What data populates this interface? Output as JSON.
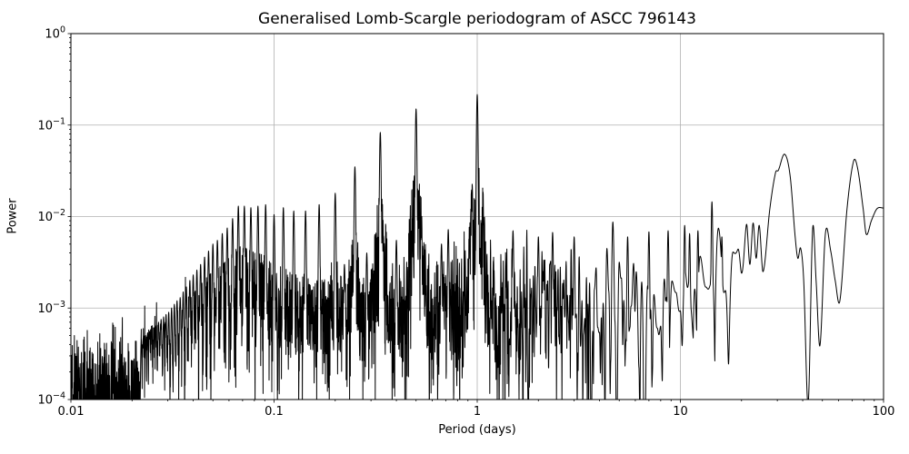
{
  "chart_data": {
    "type": "line",
    "title": "Generalised Lomb-Scargle periodogram of ASCC 796143",
    "xlabel": "Period (days)",
    "ylabel": "Power",
    "x_scale": "log",
    "y_scale": "log",
    "xlim": [
      0.01,
      100
    ],
    "ylim": [
      0.0001,
      1
    ],
    "grid": true,
    "grid_color": "#b0b0b0",
    "line_color": "#000000",
    "line_width": 1,
    "background": "#ffffff",
    "x_ticks": [
      {
        "value": 0.01,
        "label": "0.01"
      },
      {
        "value": 0.1,
        "label": "0.1"
      },
      {
        "value": 1,
        "label": "1"
      },
      {
        "value": 10,
        "label": "10"
      },
      {
        "value": 100,
        "label": "100"
      }
    ],
    "y_ticks": [
      {
        "value": 1,
        "base": "10",
        "exp": "0"
      },
      {
        "value": 0.1,
        "base": "10",
        "exp": "−1"
      },
      {
        "value": 0.01,
        "base": "10",
        "exp": "−2"
      },
      {
        "value": 0.001,
        "base": "10",
        "exp": "−3"
      },
      {
        "value": 0.0001,
        "base": "10",
        "exp": "−4"
      }
    ],
    "main_peaks": [
      {
        "period": 1.0,
        "power": 0.216
      },
      {
        "period": 0.5,
        "power": 0.15
      },
      {
        "period": 0.3333,
        "power": 0.083
      },
      {
        "period": 0.25,
        "power": 0.035
      },
      {
        "period": 14.3,
        "power": 0.0145
      },
      {
        "period": 32.5,
        "power": 0.048
      },
      {
        "period": 71.0,
        "power": 0.04
      }
    ],
    "alias_comb": [
      [
        0.2,
        0.018
      ],
      [
        0.1667,
        0.0135
      ],
      [
        0.1429,
        0.0115
      ],
      [
        0.125,
        0.0115
      ],
      [
        0.1111,
        0.0125
      ],
      [
        0.1,
        0.0105
      ],
      [
        0.0909,
        0.0135
      ],
      [
        0.0833,
        0.013
      ],
      [
        0.0769,
        0.0125
      ],
      [
        0.0714,
        0.013
      ],
      [
        0.0667,
        0.013
      ],
      [
        0.0625,
        0.0095
      ],
      [
        0.0588,
        0.0075
      ],
      [
        0.0556,
        0.0065
      ],
      [
        0.0526,
        0.0055
      ],
      [
        0.05,
        0.005
      ],
      [
        0.0476,
        0.0042
      ],
      [
        0.0455,
        0.0036
      ],
      [
        0.0435,
        0.003
      ],
      [
        0.0417,
        0.0026
      ],
      [
        0.04,
        0.0023
      ],
      [
        0.0385,
        0.002
      ],
      [
        0.037,
        0.0017
      ],
      [
        0.0357,
        0.0015
      ],
      [
        0.0345,
        0.0013
      ],
      [
        0.0333,
        0.0012
      ],
      [
        0.0323,
        0.0011
      ],
      [
        0.0313,
        0.001
      ],
      [
        0.0303,
        0.0009
      ],
      [
        0.0294,
        0.00085
      ],
      [
        0.0286,
        0.0008
      ],
      [
        0.0278,
        0.00075
      ],
      [
        0.027,
        0.0007
      ],
      [
        0.0263,
        0.00065
      ],
      [
        0.0256,
        0.0006
      ],
      [
        0.025,
        0.00058
      ],
      [
        0.0244,
        0.00055
      ],
      [
        0.0238,
        0.00052
      ],
      [
        0.0233,
        0.0005
      ],
      [
        0.0227,
        0.00048
      ],
      [
        0.0222,
        0.00046
      ]
    ],
    "secondary_peaks": [
      [
        0.222,
        0.003
      ],
      [
        0.286,
        0.004
      ],
      [
        0.4,
        0.0055
      ],
      [
        0.667,
        0.005
      ],
      [
        0.72,
        0.0072
      ],
      [
        1.5,
        0.007
      ],
      [
        2.0,
        0.006
      ],
      [
        2.35,
        0.0067
      ],
      [
        3.0,
        0.006
      ],
      [
        5.5,
        0.006
      ],
      [
        7.0,
        0.0068
      ],
      [
        8.7,
        0.007
      ],
      [
        10.5,
        0.008
      ],
      [
        11.1,
        0.0065
      ],
      [
        12.2,
        0.007
      ],
      [
        16.0,
        0.006
      ]
    ],
    "noise_envelope": [
      [
        -2.0,
        0.00015
      ],
      [
        -1.7,
        0.00022
      ],
      [
        -1.4,
        0.00032
      ],
      [
        -1.1,
        0.0005
      ],
      [
        -0.8,
        0.0007
      ],
      [
        -0.5,
        0.00095
      ],
      [
        -0.2,
        0.0013
      ],
      [
        0.0,
        0.0016
      ],
      [
        0.2,
        0.0016
      ],
      [
        0.5,
        0.0016
      ],
      [
        0.7,
        0.0017
      ],
      [
        0.85,
        0.0019
      ],
      [
        1.0,
        0.0022
      ],
      [
        1.15,
        0.0026
      ],
      [
        1.25,
        0.0028
      ]
    ],
    "long_period_curve": [
      [
        1.25,
        0.0012
      ],
      [
        1.283,
        0.007
      ],
      [
        1.301,
        0.0022
      ],
      [
        1.325,
        0.0085
      ],
      [
        1.342,
        0.003
      ],
      [
        1.358,
        0.0085
      ],
      [
        1.373,
        0.0035
      ],
      [
        1.388,
        0.008
      ],
      [
        1.407,
        0.0025
      ],
      [
        1.44,
        0.012
      ],
      [
        1.468,
        0.03
      ],
      [
        1.482,
        0.032
      ],
      [
        1.513,
        0.048
      ],
      [
        1.54,
        0.028
      ],
      [
        1.565,
        0.006
      ],
      [
        1.578,
        0.0035
      ],
      [
        1.592,
        0.0045
      ],
      [
        1.607,
        0.002
      ],
      [
        1.629,
        9e-05
      ],
      [
        1.651,
        0.0073
      ],
      [
        1.668,
        0.002
      ],
      [
        1.687,
        0.00039
      ],
      [
        1.714,
        0.0066
      ],
      [
        1.74,
        0.0042
      ],
      [
        1.762,
        0.002
      ],
      [
        1.785,
        0.0012
      ],
      [
        1.82,
        0.012
      ],
      [
        1.852,
        0.04
      ],
      [
        1.872,
        0.034
      ],
      [
        1.9,
        0.012
      ],
      [
        1.915,
        0.0064
      ],
      [
        1.94,
        0.009
      ],
      [
        1.968,
        0.0122
      ],
      [
        2.0,
        0.0124
      ]
    ],
    "synthesis": {
      "seed": 137,
      "df": 0.005,
      "needle_width": 0.0028,
      "pedestal_frac": 0.1,
      "pedestal_width": 0.022,
      "pedestal_cap": 2.0,
      "blend_start": 1.25,
      "blend_end": 1.33
    }
  }
}
